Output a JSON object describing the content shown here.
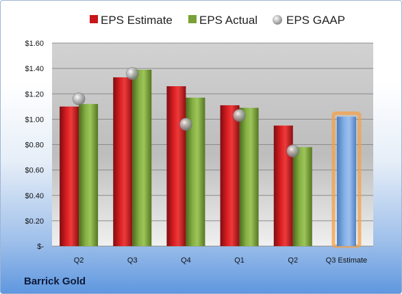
{
  "company": "Barrick Gold",
  "chart_data": {
    "type": "bar",
    "categories": [
      "Q2",
      "Q3",
      "Q4",
      "Q1",
      "Q2",
      "Q3 Estimate"
    ],
    "series": [
      {
        "name": "EPS Estimate",
        "values": [
          1.1,
          1.33,
          1.26,
          1.11,
          0.95,
          1.02
        ],
        "color": "#c8161b"
      },
      {
        "name": "EPS Actual",
        "values": [
          1.12,
          1.39,
          1.17,
          1.09,
          0.78,
          null
        ],
        "color": "#78a237"
      },
      {
        "name": "EPS GAAP",
        "values": [
          1.16,
          1.36,
          0.96,
          1.03,
          0.75,
          null
        ],
        "color": "#a6a6a6",
        "marker": "sphere"
      }
    ],
    "estimate_bar_color": "#6f9fd8",
    "highlight_color": "#f4a046",
    "ylim": [
      0,
      1.6
    ],
    "yticks": [
      0,
      0.2,
      0.4,
      0.6,
      0.8,
      1.0,
      1.2,
      1.4,
      1.6
    ],
    "ytick_labels": [
      "$-",
      "$0.20",
      "$0.40",
      "$0.60",
      "$0.80",
      "$1.00",
      "$1.20",
      "$1.40",
      "$1.60"
    ],
    "grid": true,
    "legend_position": "top"
  }
}
